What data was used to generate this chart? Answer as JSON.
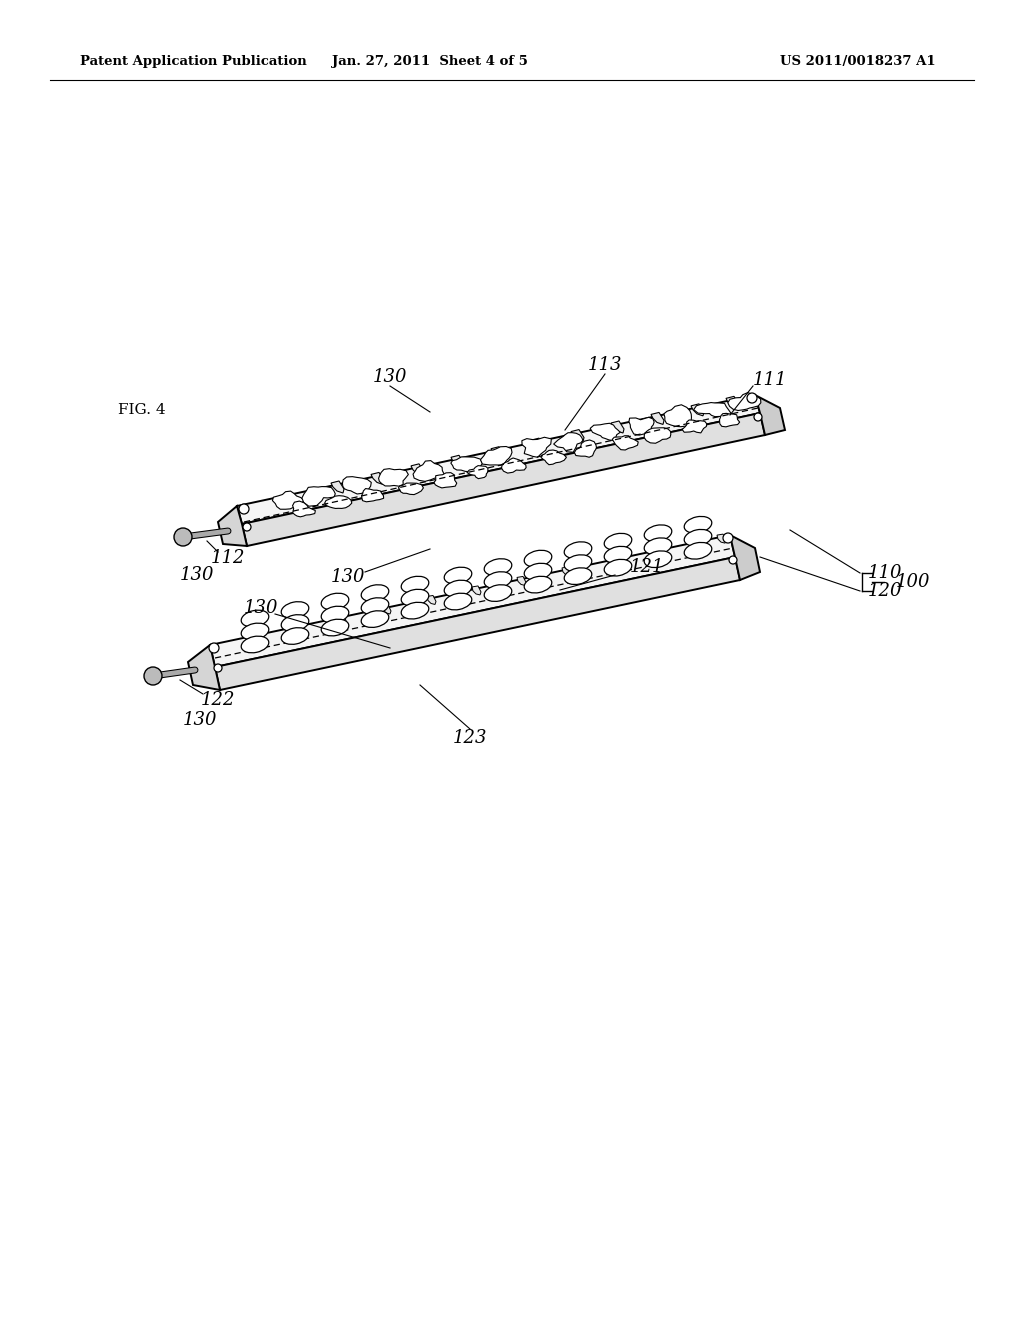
{
  "bg_color": "#ffffff",
  "line_color": "#000000",
  "header_left": "Patent Application Publication",
  "header_mid": "Jan. 27, 2011  Sheet 4 of 5",
  "header_right": "US 2011/0018237 A1",
  "fig_label": "FIG. 4",
  "figsize": [
    10.24,
    13.2
  ],
  "dpi": 100
}
